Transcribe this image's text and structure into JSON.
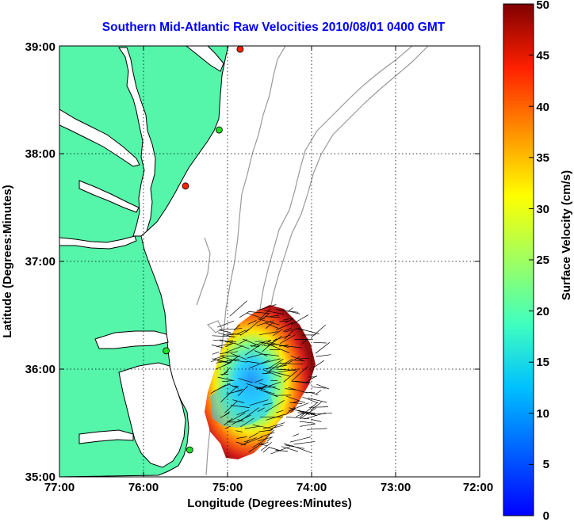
{
  "title": "Southern Mid-Atlantic Raw Velocities 2010/08/01 0400 GMT",
  "xlabel": "Longitude (Degrees:Minutes)",
  "ylabel": "Latitude (Degrees:Minutes)",
  "x_ticks": [
    "77:00",
    "76:00",
    "75:00",
    "74:00",
    "73:00",
    "72:00"
  ],
  "y_ticks": [
    "39:00",
    "38:00",
    "37:00",
    "36:00",
    "35:00"
  ],
  "colorbar": {
    "label": "Surface Velocity (cm/s)",
    "ticks": [
      "50",
      "45",
      "40",
      "35",
      "30",
      "25",
      "20",
      "15",
      "10",
      "5",
      "0"
    ],
    "min": 0,
    "max": 50,
    "colormap": "jet"
  },
  "colors": {
    "land": "#55f5aa",
    "water": "#ffffff",
    "title": "#0000ff",
    "coastline": "#000000",
    "bathymetry": "#999999",
    "site_green": "#22dd22",
    "site_red": "#ff2200"
  },
  "map": {
    "lon_range": [
      -77.0,
      -72.0
    ],
    "lat_range": [
      35.0,
      39.0
    ],
    "grid": "dotted"
  },
  "sites": [
    {
      "lon": -74.85,
      "lat": 38.97,
      "status": "red"
    },
    {
      "lon": -75.1,
      "lat": 38.22,
      "status": "green"
    },
    {
      "lon": -75.5,
      "lat": 37.7,
      "status": "red"
    },
    {
      "lon": -75.73,
      "lat": 36.17,
      "status": "green"
    },
    {
      "lon": -75.45,
      "lat": 35.25,
      "status": "green"
    }
  ],
  "chart_data": {
    "type": "map",
    "variable": "Surface Velocity",
    "units": "cm/s",
    "range": [
      0,
      50
    ],
    "extent": {
      "lon": [
        -77.0,
        -72.0
      ],
      "lat": [
        35.0,
        39.0
      ]
    }
  }
}
